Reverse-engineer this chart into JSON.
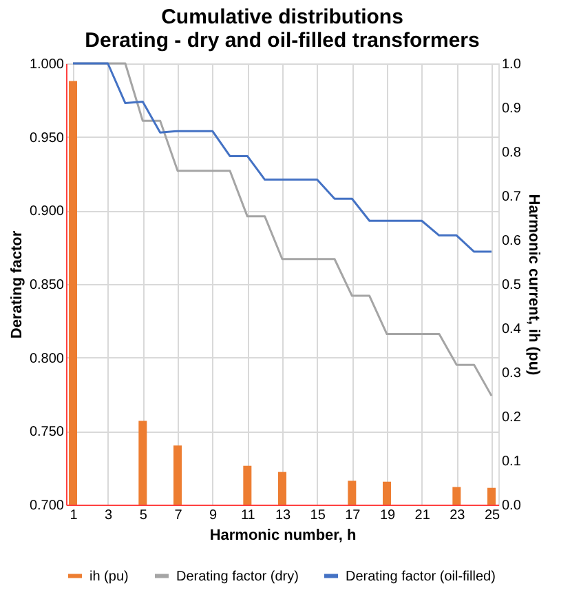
{
  "chart_data": {
    "type": "line",
    "title": "Cumulative distributions\nDerating - dry and oil-filled transformers",
    "xlabel": "Harmonic number, h",
    "ylabel": "Derating factor",
    "y2label": "Harmonic current, ih (pu)",
    "xlim": [
      1,
      25
    ],
    "xticks": [
      1,
      3,
      5,
      7,
      9,
      11,
      13,
      15,
      17,
      19,
      21,
      23,
      25
    ],
    "ylim": [
      0.7,
      1.0
    ],
    "yticks": [
      {
        "value": 0.7,
        "label": "0.700"
      },
      {
        "value": 0.75,
        "label": "0.750"
      },
      {
        "value": 0.8,
        "label": "0.800"
      },
      {
        "value": 0.85,
        "label": "0.850"
      },
      {
        "value": 0.9,
        "label": "0.900"
      },
      {
        "value": 0.95,
        "label": "0.950"
      },
      {
        "value": 1.0,
        "label": "1.000"
      }
    ],
    "y2lim": [
      0,
      1.0
    ],
    "y2ticks": [
      {
        "value": 0,
        "label": "0.0"
      },
      {
        "value": 0.1,
        "label": "0.1"
      },
      {
        "value": 0.2,
        "label": "0.2"
      },
      {
        "value": 0.3,
        "label": "0.3"
      },
      {
        "value": 0.4,
        "label": "0.4"
      },
      {
        "value": 0.5,
        "label": "0.5"
      },
      {
        "value": 0.6,
        "label": "0.6"
      },
      {
        "value": 0.7,
        "label": "0.7"
      },
      {
        "value": 0.8,
        "label": "0.8"
      },
      {
        "value": 0.9,
        "label": "0.9"
      },
      {
        "value": 1.0,
        "label": "1.0"
      }
    ],
    "grid": true,
    "legend": "bottom",
    "marker": "none",
    "line_style": "solid",
    "series": [
      {
        "name": "ih (pu)",
        "type": "bar",
        "axis": "y2",
        "color": "#ed7d31",
        "x": [
          1,
          5,
          7,
          11,
          13,
          17,
          19,
          23,
          25
        ],
        "values": [
          0.96,
          0.19,
          0.134,
          0.088,
          0.074,
          0.054,
          0.052,
          0.04,
          0.038
        ]
      },
      {
        "name": "Derating factor (dry)",
        "color": "#a5a5a5",
        "x": [
          1,
          2,
          3,
          4,
          5,
          6,
          7,
          8,
          9,
          10,
          11,
          12,
          13,
          14,
          15,
          16,
          17,
          18,
          19,
          20,
          21,
          22,
          23,
          24,
          25
        ],
        "values": [
          1.0,
          1.0,
          1.0,
          1.0,
          0.961,
          0.961,
          0.927,
          0.927,
          0.927,
          0.927,
          0.896,
          0.896,
          0.867,
          0.867,
          0.867,
          0.867,
          0.842,
          0.842,
          0.816,
          0.816,
          0.816,
          0.816,
          0.795,
          0.795,
          0.774
        ]
      },
      {
        "name": "Derating factor (oil-filled)",
        "color": "#4472c4",
        "x": [
          1,
          2,
          3,
          4,
          5,
          6,
          7,
          8,
          9,
          10,
          11,
          12,
          13,
          14,
          15,
          16,
          17,
          18,
          19,
          20,
          21,
          22,
          23,
          24,
          25
        ],
        "values": [
          1.0,
          1.0,
          1.0,
          0.973,
          0.974,
          0.953,
          0.954,
          0.954,
          0.954,
          0.937,
          0.937,
          0.921,
          0.921,
          0.921,
          0.921,
          0.908,
          0.908,
          0.893,
          0.893,
          0.893,
          0.893,
          0.883,
          0.883,
          0.872,
          0.872
        ]
      }
    ]
  }
}
